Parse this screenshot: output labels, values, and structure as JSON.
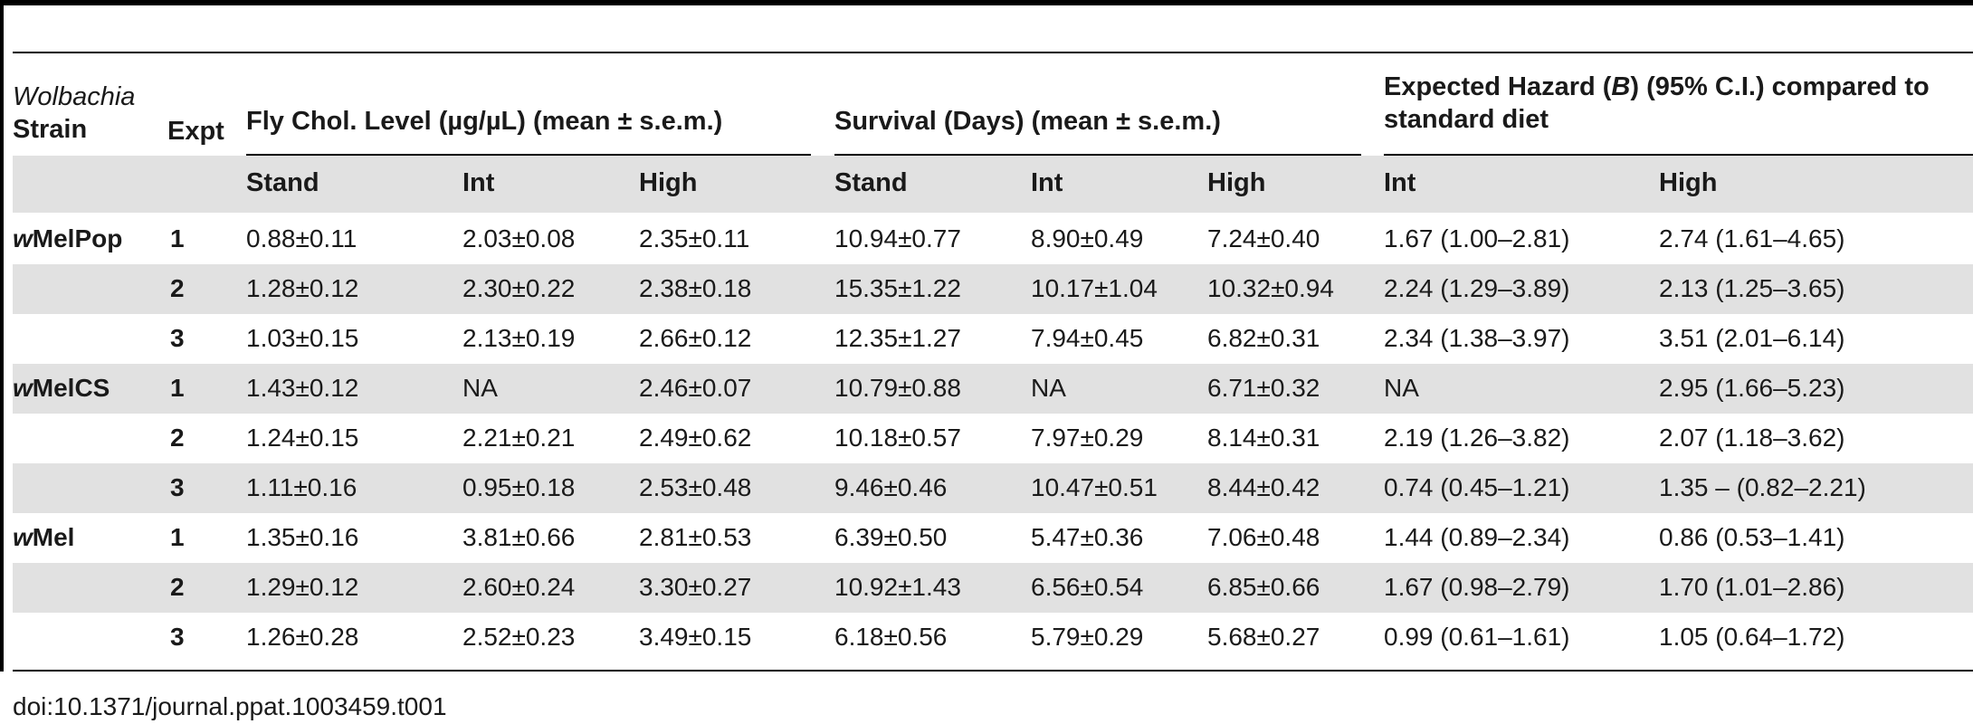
{
  "table": {
    "col_header_strain_line1": "Wolbachia",
    "col_header_strain_line2": "Strain",
    "col_header_expt": "Expt",
    "group_chol": "Fly Chol. Level (µg/µL) (mean ± s.e.m.)",
    "group_survival": "Survival (Days) (mean ± s.e.m.)",
    "group_hazard_line1_prefix": "Expected Hazard (",
    "group_hazard_symbol": "B",
    "group_hazard_line1_suffix": ") (95% C.I.) compared to",
    "group_hazard_line2": "standard diet",
    "sub_headers": [
      "Stand",
      "Int",
      "High",
      "Stand",
      "Int",
      "High",
      "Int",
      "High"
    ],
    "rows": [
      {
        "strain_italic": "w",
        "strain_rest": "MelPop",
        "expt": "1",
        "chol_stand": "0.88±0.11",
        "chol_int": "2.03±0.08",
        "chol_high": "2.35±0.11",
        "surv_stand": "10.94±0.77",
        "surv_int": "8.90±0.49",
        "surv_high": "7.24±0.40",
        "haz_int": "1.67 (1.00–2.81)",
        "haz_high": "2.74 (1.61–4.65)"
      },
      {
        "strain_italic": "",
        "strain_rest": "",
        "expt": "2",
        "chol_stand": "1.28±0.12",
        "chol_int": "2.30±0.22",
        "chol_high": "2.38±0.18",
        "surv_stand": "15.35±1.22",
        "surv_int": "10.17±1.04",
        "surv_high": "10.32±0.94",
        "haz_int": "2.24 (1.29–3.89)",
        "haz_high": "2.13 (1.25–3.65)"
      },
      {
        "strain_italic": "",
        "strain_rest": "",
        "expt": "3",
        "chol_stand": "1.03±0.15",
        "chol_int": "2.13±0.19",
        "chol_high": "2.66±0.12",
        "surv_stand": "12.35±1.27",
        "surv_int": "7.94±0.45",
        "surv_high": "6.82±0.31",
        "haz_int": "2.34 (1.38–3.97)",
        "haz_high": "3.51 (2.01–6.14)"
      },
      {
        "strain_italic": "w",
        "strain_rest": "MelCS",
        "expt": "1",
        "chol_stand": "1.43±0.12",
        "chol_int": "NA",
        "chol_high": "2.46±0.07",
        "surv_stand": "10.79±0.88",
        "surv_int": "NA",
        "surv_high": "6.71±0.32",
        "haz_int": "NA",
        "haz_high": "2.95 (1.66–5.23)"
      },
      {
        "strain_italic": "",
        "strain_rest": "",
        "expt": "2",
        "chol_stand": "1.24±0.15",
        "chol_int": "2.21±0.21",
        "chol_high": "2.49±0.62",
        "surv_stand": "10.18±0.57",
        "surv_int": "7.97±0.29",
        "surv_high": "8.14±0.31",
        "haz_int": "2.19 (1.26–3.82)",
        "haz_high": "2.07 (1.18–3.62)"
      },
      {
        "strain_italic": "",
        "strain_rest": "",
        "expt": "3",
        "chol_stand": "1.11±0.16",
        "chol_int": "0.95±0.18",
        "chol_high": "2.53±0.48",
        "surv_stand": "9.46±0.46",
        "surv_int": "10.47±0.51",
        "surv_high": "8.44±0.42",
        "haz_int": "0.74 (0.45–1.21)",
        "haz_high": "1.35 – (0.82–2.21)"
      },
      {
        "strain_italic": "w",
        "strain_rest": "Mel",
        "expt": "1",
        "chol_stand": "1.35±0.16",
        "chol_int": "3.81±0.66",
        "chol_high": "2.81±0.53",
        "surv_stand": "6.39±0.50",
        "surv_int": "5.47±0.36",
        "surv_high": "7.06±0.48",
        "haz_int": "1.44 (0.89–2.34)",
        "haz_high": "0.86 (0.53–1.41)"
      },
      {
        "strain_italic": "",
        "strain_rest": "",
        "expt": "2",
        "chol_stand": "1.29±0.12",
        "chol_int": "2.60±0.24",
        "chol_high": "3.30±0.27",
        "surv_stand": "10.92±1.43",
        "surv_int": "6.56±0.54",
        "surv_high": "6.85±0.66",
        "haz_int": "1.67 (0.98–2.79)",
        "haz_high": "1.70 (1.01–2.86)"
      },
      {
        "strain_italic": "",
        "strain_rest": "",
        "expt": "3",
        "chol_stand": "1.26±0.28",
        "chol_int": "2.52±0.23",
        "chol_high": "3.49±0.15",
        "surv_stand": "6.18±0.56",
        "surv_int": "5.79±0.29",
        "surv_high": "5.68±0.27",
        "haz_int": "0.99 (0.61–1.61)",
        "haz_high": "1.05 (0.64–1.72)"
      }
    ]
  },
  "caption": "doi:10.1371/journal.ppat.1003459.t001"
}
